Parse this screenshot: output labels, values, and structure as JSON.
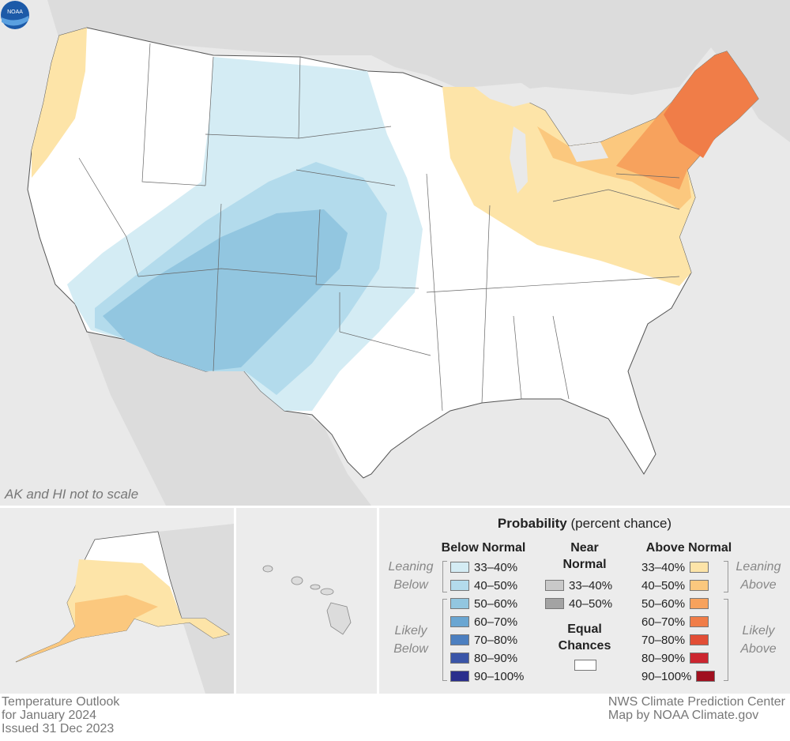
{
  "map": {
    "note": "AK and HI not to scale",
    "logo_text": "NOAA"
  },
  "legend": {
    "title": "Probability",
    "title_suffix": "(percent chance)",
    "below_header": "Below Normal",
    "near_header_1": "Near",
    "near_header_2": "Normal",
    "above_header": "Above Normal",
    "leaning_below_1": "Leaning",
    "leaning_below_2": "Below",
    "likely_below_1": "Likely",
    "likely_below_2": "Below",
    "leaning_above_1": "Leaning",
    "leaning_above_2": "Above",
    "likely_above_1": "Likely",
    "likely_above_2": "Above",
    "equal_1": "Equal",
    "equal_2": "Chances",
    "below": [
      {
        "label": "33–40%",
        "color": "#d4ecf4"
      },
      {
        "label": "40–50%",
        "color": "#b3dbec"
      },
      {
        "label": "50–60%",
        "color": "#92c6e0"
      },
      {
        "label": "60–70%",
        "color": "#6aa6d2"
      },
      {
        "label": "70–80%",
        "color": "#4c7fc0"
      },
      {
        "label": "80–90%",
        "color": "#3a55a8"
      },
      {
        "label": "90–100%",
        "color": "#2a2e8c"
      }
    ],
    "near": [
      {
        "label": "33–40%",
        "color": "#c9c9c9"
      },
      {
        "label": "40–50%",
        "color": "#a3a3a3"
      }
    ],
    "above": [
      {
        "label": "33–40%",
        "color": "#fde4a8"
      },
      {
        "label": "40–50%",
        "color": "#fbc87e"
      },
      {
        "label": "50–60%",
        "color": "#f7a25d"
      },
      {
        "label": "60–70%",
        "color": "#f07d48"
      },
      {
        "label": "70–80%",
        "color": "#e24d35"
      },
      {
        "label": "80–90%",
        "color": "#cc2630"
      },
      {
        "label": "90–100%",
        "color": "#a0101f"
      }
    ]
  },
  "footer": {
    "left_1": "Temperature Outlook",
    "left_2": "for January 2024",
    "left_3": "Issued 31 Dec 2023",
    "right_1": "NWS Climate Prediction Center",
    "right_2": "Map by NOAA Climate.gov"
  }
}
